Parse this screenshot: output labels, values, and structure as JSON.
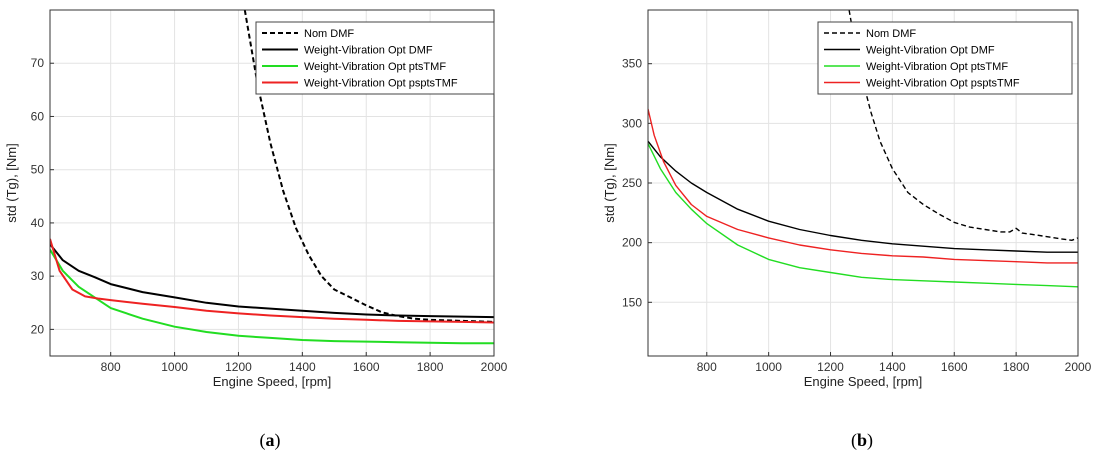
{
  "chart_data": [
    {
      "type": "line",
      "caption_open": "(",
      "caption_letter": "a",
      "caption_close": ")",
      "xlabel": "Engine Speed, [rpm]",
      "ylabel": "std (Tg), [Nm]",
      "xlim": [
        610,
        2000
      ],
      "ylim": [
        15,
        80
      ],
      "xticks": [
        800,
        1000,
        1200,
        1400,
        1600,
        1800,
        2000
      ],
      "yticks": [
        20,
        30,
        40,
        50,
        60,
        70
      ],
      "grid": true,
      "legend": "top-right",
      "series": [
        {
          "name": "Nom DMF",
          "color": "#000000",
          "dash": "dashed",
          "x": [
            1220,
            1260,
            1300,
            1340,
            1380,
            1420,
            1460,
            1500,
            1550,
            1600,
            1650,
            1700,
            1750,
            1800,
            1850,
            1900,
            1950,
            2000
          ],
          "y": [
            80,
            66,
            55,
            46,
            39,
            34,
            30,
            27.5,
            26,
            24.5,
            23.2,
            22.5,
            22,
            21.8,
            21.7,
            21.6,
            21.5,
            21.4
          ]
        },
        {
          "name": "Weight-Vibration Opt DMF",
          "color": "#000000",
          "dash": "solid",
          "x": [
            610,
            650,
            700,
            750,
            800,
            900,
            1000,
            1100,
            1200,
            1300,
            1400,
            1500,
            1600,
            1700,
            1800,
            1900,
            2000
          ],
          "y": [
            36,
            33,
            31,
            29.8,
            28.5,
            27,
            26,
            25,
            24.3,
            23.9,
            23.5,
            23.1,
            22.8,
            22.6,
            22.5,
            22.4,
            22.3
          ]
        },
        {
          "name": "Weight-Vibration Opt ptsTMF",
          "color": "#22dd22",
          "dash": "solid",
          "x": [
            610,
            650,
            700,
            750,
            800,
            900,
            1000,
            1100,
            1200,
            1300,
            1400,
            1500,
            1600,
            1700,
            1800,
            1900,
            2000
          ],
          "y": [
            35,
            31,
            28,
            26,
            24,
            22,
            20.5,
            19.5,
            18.8,
            18.4,
            18,
            17.8,
            17.7,
            17.6,
            17.5,
            17.4,
            17.4
          ]
        },
        {
          "name": "Weight-Vibration Opt psptsTMF",
          "color": "#ee2222",
          "dash": "solid",
          "x": [
            610,
            640,
            680,
            720,
            760,
            800,
            900,
            1000,
            1100,
            1200,
            1300,
            1400,
            1500,
            1600,
            1700,
            1800,
            1900,
            2000
          ],
          "y": [
            37,
            31,
            27.5,
            26.2,
            25.8,
            25.5,
            24.8,
            24.2,
            23.5,
            23,
            22.6,
            22.3,
            22,
            21.8,
            21.6,
            21.5,
            21.4,
            21.3
          ]
        }
      ]
    },
    {
      "type": "line",
      "caption_open": "(",
      "caption_letter": "b",
      "caption_close": ")",
      "xlabel": "Engine Speed, [rpm]",
      "ylabel": "std (Tg), [Nm]",
      "xlim": [
        610,
        2000
      ],
      "ylim": [
        105,
        395
      ],
      "xticks": [
        800,
        1000,
        1200,
        1400,
        1600,
        1800,
        2000
      ],
      "yticks": [
        150,
        200,
        250,
        300,
        350
      ],
      "grid": true,
      "legend": "top-right",
      "series": [
        {
          "name": "Nom DMF",
          "color": "#000000",
          "dash": "dashed",
          "x": [
            1260,
            1280,
            1300,
            1330,
            1360,
            1400,
            1450,
            1500,
            1550,
            1600,
            1650,
            1700,
            1750,
            1780,
            1800,
            1820,
            1850,
            1900,
            1950,
            1980,
            2000
          ],
          "y": [
            395,
            365,
            340,
            310,
            285,
            262,
            242,
            232,
            224,
            217,
            213,
            211,
            209,
            209,
            212,
            208,
            207,
            205,
            203,
            202,
            204
          ]
        },
        {
          "name": "Weight-Vibration Opt DMF",
          "color": "#000000",
          "dash": "solid",
          "x": [
            610,
            650,
            700,
            750,
            800,
            900,
            1000,
            1100,
            1200,
            1300,
            1400,
            1500,
            1600,
            1700,
            1800,
            1900,
            2000
          ],
          "y": [
            285,
            272,
            260,
            250,
            242,
            228,
            218,
            211,
            206,
            202,
            199,
            197,
            195,
            194,
            193,
            192,
            192
          ]
        },
        {
          "name": "Weight-Vibration Opt ptsTMF",
          "color": "#22dd22",
          "dash": "solid",
          "x": [
            610,
            650,
            700,
            750,
            800,
            900,
            1000,
            1100,
            1200,
            1300,
            1400,
            1500,
            1600,
            1700,
            1800,
            1900,
            2000
          ],
          "y": [
            283,
            262,
            242,
            228,
            216,
            198,
            186,
            179,
            175,
            171,
            169,
            168,
            167,
            166,
            165,
            164,
            163
          ]
        },
        {
          "name": "Weight-Vibration Opt psptsTMF",
          "color": "#ee2222",
          "dash": "solid",
          "x": [
            610,
            630,
            660,
            700,
            750,
            800,
            900,
            1000,
            1100,
            1200,
            1300,
            1400,
            1500,
            1600,
            1700,
            1800,
            1900,
            2000
          ],
          "y": [
            312,
            290,
            268,
            248,
            232,
            222,
            211,
            204,
            198,
            194,
            191,
            189,
            188,
            186,
            185,
            184,
            183,
            183
          ]
        }
      ]
    }
  ]
}
